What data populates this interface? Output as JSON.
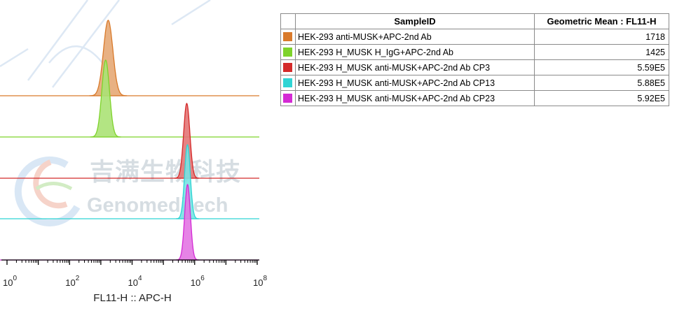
{
  "watermark": {
    "chinese_text": "吉满生物科技",
    "english_text": "Genomeditech"
  },
  "chart_data": {
    "type": "histogram-overlay",
    "xlabel": "FL11-H :: APC-H",
    "x_scale": "log",
    "xlim": [
      1,
      100000000
    ],
    "x_ticks": [
      {
        "base": "10",
        "exp": "0",
        "value": 1
      },
      {
        "base": "10",
        "exp": "2",
        "value": 100
      },
      {
        "base": "10",
        "exp": "4",
        "value": 10000
      },
      {
        "base": "10",
        "exp": "6",
        "value": 1000000
      },
      {
        "base": "10",
        "exp": "8",
        "value": 100000000
      }
    ],
    "series": [
      {
        "name": "HEK-293 anti-MUSK+APC-2nd Ab",
        "color": "#d97a2b",
        "peak": 1718,
        "width_decades": 0.33
      },
      {
        "name": "HEK-293 H_MUSK H_IgG+APC-2nd Ab",
        "color": "#7ed32b",
        "peak": 1425,
        "width_decades": 0.27
      },
      {
        "name": "HEK-293 H_MUSK anti-MUSK+APC-2nd Ab CP3",
        "color": "#d42a2a",
        "peak": 559000,
        "width_decades": 0.22
      },
      {
        "name": "HEK-293 H_MUSK anti-MUSK+APC-2nd Ab CP13",
        "color": "#2fd4d4",
        "peak": 588000,
        "width_decades": 0.2
      },
      {
        "name": "HEK-293 H_MUSK anti-MUSK+APC-2nd Ab CP23",
        "color": "#d42ad4",
        "peak": 592000,
        "width_decades": 0.2
      }
    ]
  },
  "table": {
    "headers": [
      "SampleID",
      "Geometric Mean : FL11-H"
    ],
    "rows": [
      {
        "color": "#d97a2b",
        "sample": "HEK-293 anti-MUSK+APC-2nd Ab",
        "value": "1718"
      },
      {
        "color": "#7ed32b",
        "sample": "HEK-293 H_MUSK H_IgG+APC-2nd Ab",
        "value": "1425"
      },
      {
        "color": "#d42a2a",
        "sample": "HEK-293 H_MUSK anti-MUSK+APC-2nd Ab CP3",
        "value": "5.59E5"
      },
      {
        "color": "#2fd4d4",
        "sample": "HEK-293 H_MUSK anti-MUSK+APC-2nd Ab CP13",
        "value": "5.88E5"
      },
      {
        "color": "#d42ad4",
        "sample": "HEK-293 H_MUSK anti-MUSK+APC-2nd Ab CP23",
        "value": "5.92E5"
      }
    ]
  }
}
